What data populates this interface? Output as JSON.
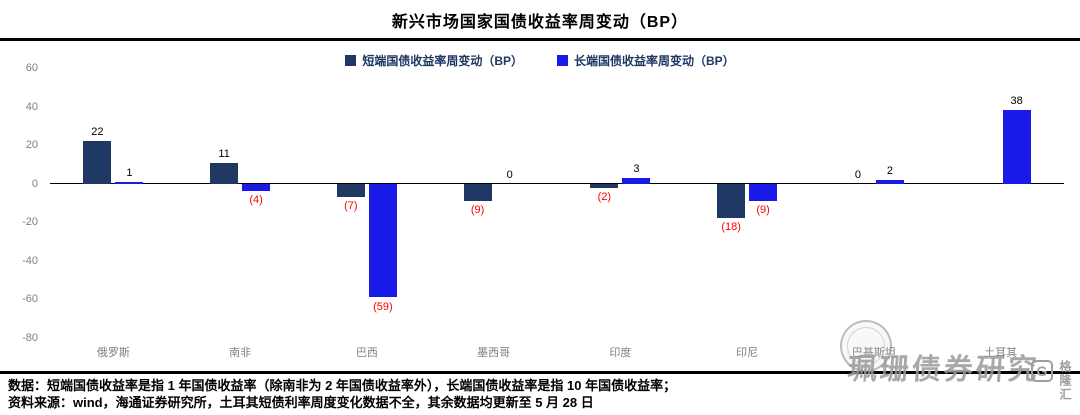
{
  "title": "新兴市场国家国债收益率周变动（BP）",
  "chart_data": {
    "type": "bar",
    "categories": [
      "俄罗斯",
      "南非",
      "巴西",
      "墨西哥",
      "印度",
      "印尼",
      "巴基斯坦",
      "土耳其"
    ],
    "series": [
      {
        "name": "短端国债收益率周变动（BP）",
        "color": "#1F3864",
        "values": [
          22,
          11,
          -7,
          -9,
          -2,
          -18,
          0,
          null
        ]
      },
      {
        "name": "长端国债收益率周变动（BP）",
        "color": "#1A1AE8",
        "values": [
          1,
          -4,
          -59,
          0,
          3,
          -9,
          2,
          38
        ]
      }
    ],
    "ylim": [
      -80,
      60
    ],
    "yticks": [
      60,
      40,
      20,
      0,
      -20,
      -40,
      -60,
      -80
    ],
    "positive_label_color": "#000000",
    "negative_label_color": "#FF0000",
    "legend_position": "top",
    "grid": false
  },
  "footer": {
    "line1": "数据：短端国债收益率是指 1 年国债收益率（除南非为 2 年国债收益率外），长端国债收益率是指 10 年国债收益率；",
    "line2": "资料来源：wind，海通证券研究所，土耳其短债利率周度变化数据不全，其余数据均更新至 5 月 28 日"
  },
  "watermarks": {
    "script_text": "珮珊债券研究",
    "logo_letter": "G",
    "logo_text": "格隆汇"
  }
}
